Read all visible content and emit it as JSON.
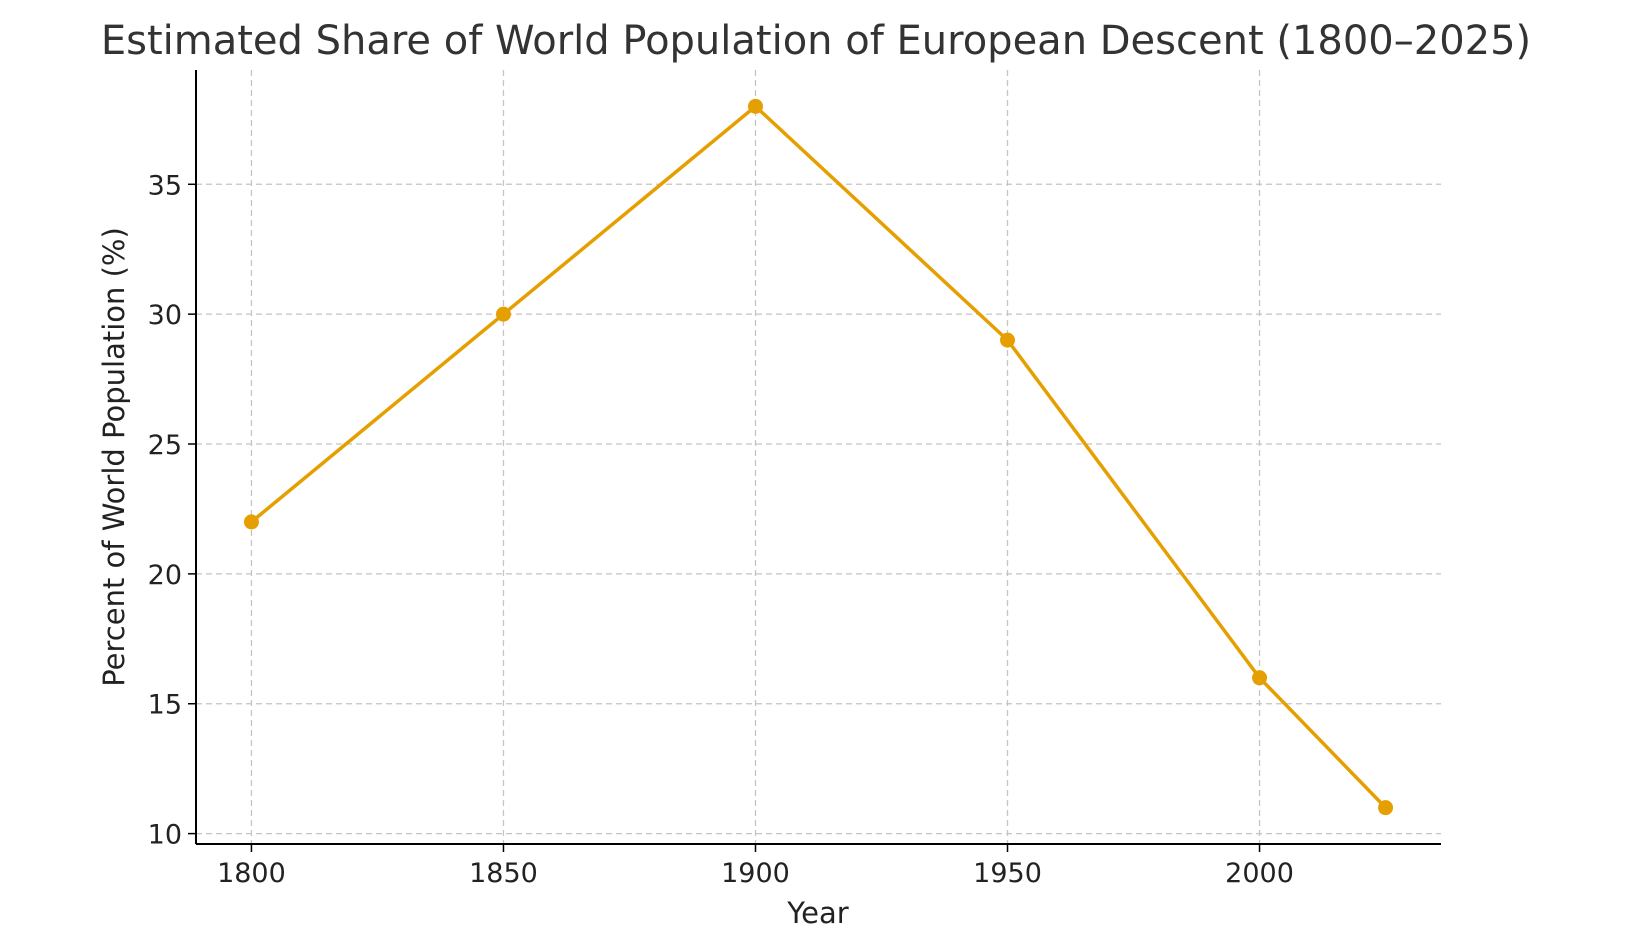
{
  "chart_data": {
    "type": "line",
    "title": "Estimated Share of World Population of European Descent (1800–2025)",
    "xlabel": "Year",
    "ylabel": "Percent of World Population (%)",
    "x": [
      1800,
      1850,
      1900,
      1950,
      2000,
      2025
    ],
    "series": [
      {
        "values": [
          22,
          30,
          38,
          29,
          16,
          11
        ],
        "color": "#E69F00",
        "marker": "circle"
      }
    ],
    "xticks": [
      "1800",
      "1850",
      "1900",
      "1950",
      "2000"
    ],
    "yticks": [
      "10",
      "15",
      "20",
      "25",
      "30",
      "35"
    ],
    "xlim": [
      1789,
      2036
    ],
    "ylim": [
      9.6,
      39.4
    ],
    "grid": true,
    "grid_style": "dashed",
    "legend": false
  }
}
